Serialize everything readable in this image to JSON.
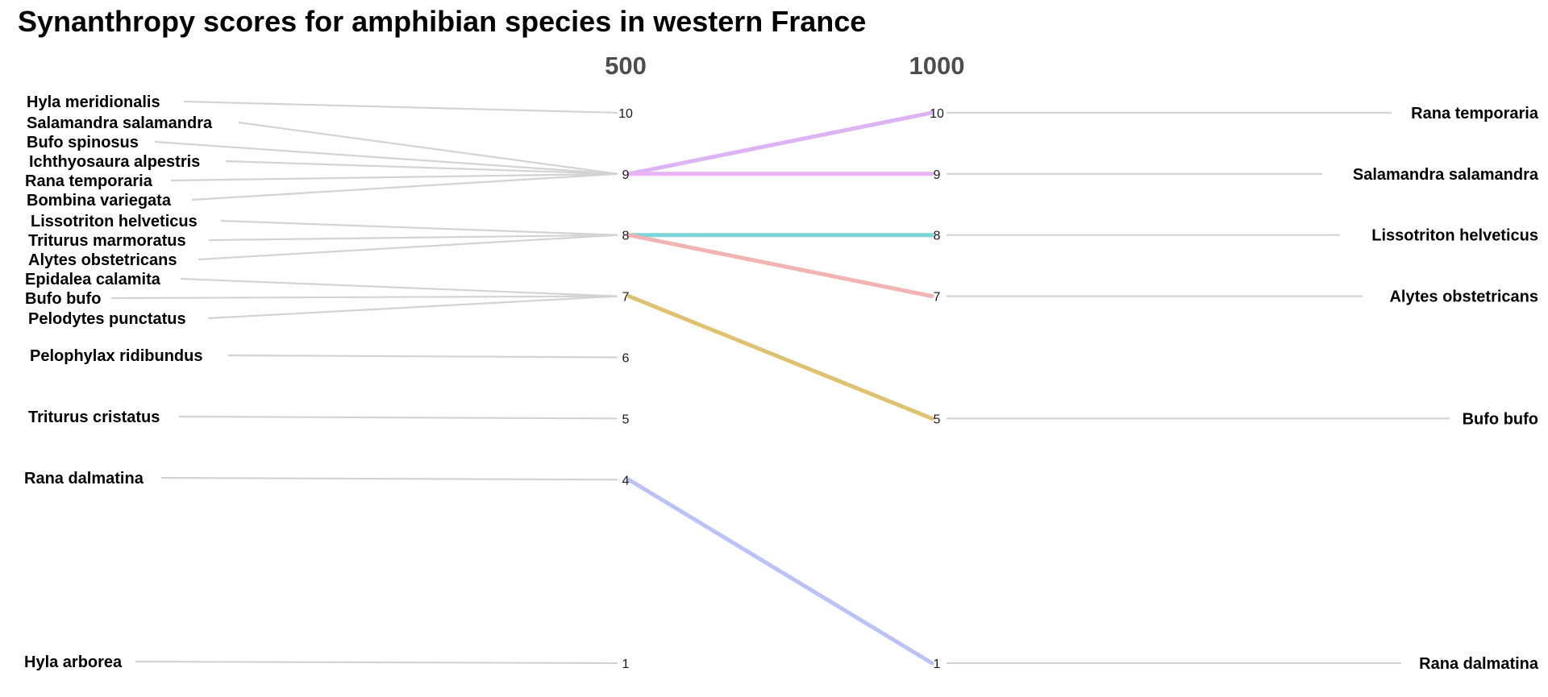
{
  "chart_data": {
    "type": "line",
    "title": "Synanthropy scores for amphibian species in western France",
    "columns": [
      "500",
      "1000"
    ],
    "left_labels": [
      {
        "name": "Hyla meridionalis",
        "score": 10
      },
      {
        "name": "Salamandra salamandra",
        "score": 9
      },
      {
        "name": "Bufo spinosus",
        "score": 9
      },
      {
        "name": "Ichthyosaura alpestris",
        "score": 9
      },
      {
        "name": "Rana temporaria",
        "score": 9
      },
      {
        "name": "Bombina variegata",
        "score": 9
      },
      {
        "name": "Lissotriton helveticus",
        "score": 8
      },
      {
        "name": "Triturus marmoratus",
        "score": 8
      },
      {
        "name": "Alytes obstetricans",
        "score": 8
      },
      {
        "name": "Epidalea calamita",
        "score": 7
      },
      {
        "name": "Bufo bufo",
        "score": 7
      },
      {
        "name": "Pelodytes punctatus",
        "score": 7
      },
      {
        "name": "Pelophylax ridibundus",
        "score": 6
      },
      {
        "name": "Triturus cristatus",
        "score": 5
      },
      {
        "name": "Rana dalmatina",
        "score": 4
      },
      {
        "name": "Hyla arborea",
        "score": 1
      }
    ],
    "left_scores": [
      "10",
      "9",
      "8",
      "7",
      "6",
      "5",
      "4",
      "1"
    ],
    "right_scores": [
      "10",
      "9",
      "8",
      "7",
      "5",
      "1"
    ],
    "right_labels": [
      {
        "name": "Rana temporaria",
        "score": 10
      },
      {
        "name": "Salamandra salamandra",
        "score": 9
      },
      {
        "name": "Lissotriton helveticus",
        "score": 8
      },
      {
        "name": "Alytes obstetricans",
        "score": 7
      },
      {
        "name": "Bufo bufo",
        "score": 5
      },
      {
        "name": "Rana dalmatina",
        "score": 1
      }
    ],
    "series": [
      {
        "from": 9,
        "to": 10,
        "color": "#dcb4f6"
      },
      {
        "from": 9,
        "to": 9,
        "color": "#e9b3f4"
      },
      {
        "from": 8,
        "to": 8,
        "color": "#79d6da"
      },
      {
        "from": 8,
        "to": 7,
        "color": "#f4b3b3"
      },
      {
        "from": 7,
        "to": 5,
        "color": "#dfc271"
      },
      {
        "from": 4,
        "to": 1,
        "color": "#bac2f8"
      }
    ],
    "colors": {
      "connector": "#d3d3d3"
    }
  }
}
